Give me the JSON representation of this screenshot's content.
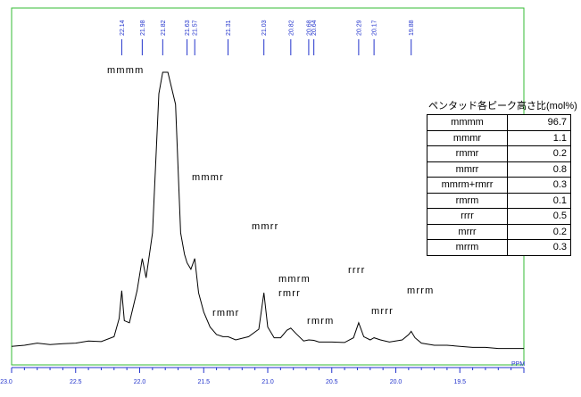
{
  "chart_data": {
    "type": "line",
    "xlabel": "PPM",
    "xlim": [
      23.0,
      19.0
    ],
    "x_ticks": [
      "23.0",
      "22.5",
      "22.0",
      "21.5",
      "21.0",
      "20.5",
      "20.0",
      "19.5"
    ],
    "peak_markers": [
      "22.14",
      "21.98",
      "21.82",
      "21.63",
      "21.57",
      "21.31",
      "21.03",
      "20.82",
      "20.68",
      "20.64",
      "20.29",
      "20.17",
      "19.88"
    ],
    "peak_labels": [
      {
        "text": "mmmm",
        "ppm": 21.82
      },
      {
        "text": "mmmr",
        "ppm": 21.57
      },
      {
        "text": "mmrr",
        "ppm": 21.03
      },
      {
        "text": "mmrm",
        "ppm": 20.82
      },
      {
        "text": "rmrr",
        "ppm": 20.82
      },
      {
        "text": "rmmr",
        "ppm": 21.31
      },
      {
        "text": "rmrm",
        "ppm": 20.64
      },
      {
        "text": "rrrr",
        "ppm": 20.29
      },
      {
        "text": "mrrr",
        "ppm": 20.17
      },
      {
        "text": "mrrm",
        "ppm": 19.88
      }
    ],
    "series": [
      {
        "x": [
          23.0,
          22.9,
          22.8,
          22.7,
          22.6,
          22.5,
          22.4,
          22.3,
          22.2,
          22.16,
          22.14,
          22.12,
          22.08,
          22.02,
          21.98,
          21.95,
          21.9,
          21.85,
          21.82,
          21.78,
          21.72,
          21.68,
          21.65,
          21.63,
          21.6,
          21.57,
          21.54,
          21.5,
          21.45,
          21.4,
          21.35,
          21.31,
          21.25,
          21.15,
          21.07,
          21.03,
          21.0,
          20.95,
          20.9,
          20.85,
          20.82,
          20.78,
          20.72,
          20.68,
          20.64,
          20.6,
          20.5,
          20.4,
          20.33,
          20.29,
          20.25,
          20.2,
          20.17,
          20.12,
          20.05,
          19.95,
          19.9,
          19.88,
          19.85,
          19.8,
          19.7,
          19.6,
          19.5,
          19.4,
          19.3,
          19.2,
          19.1,
          19.0
        ],
        "y": [
          2.0,
          2.5,
          3.5,
          2.8,
          3.2,
          3.5,
          4.5,
          4.2,
          6.5,
          15.0,
          28.0,
          14.0,
          13.0,
          28.0,
          43.0,
          34.0,
          55.0,
          120.0,
          130.0,
          130.0,
          115.0,
          55.0,
          45.0,
          41.0,
          38.0,
          43.0,
          27.0,
          18.0,
          11.0,
          7.5,
          6.5,
          6.5,
          5.0,
          6.5,
          10.0,
          27.0,
          11.0,
          6.0,
          6.0,
          9.5,
          10.5,
          8.0,
          4.5,
          5.0,
          4.8,
          4.0,
          4.0,
          3.8,
          6.0,
          13.0,
          6.5,
          5.0,
          6.0,
          5.0,
          4.0,
          5.0,
          7.5,
          9.0,
          6.0,
          3.5,
          2.5,
          2.5,
          2.0,
          1.5,
          1.5,
          1.0,
          1.0,
          1.0
        ]
      }
    ],
    "grid": false
  },
  "table": {
    "title": "ペンタッド各ピーク高さ比(mol%)",
    "rows": [
      {
        "k": "mmmm",
        "v": "96.7"
      },
      {
        "k": "mmmr",
        "v": "1.1"
      },
      {
        "k": "rmmr",
        "v": "0.2"
      },
      {
        "k": "mmrr",
        "v": "0.8"
      },
      {
        "k": "mmrm+rmrr",
        "v": "0.3"
      },
      {
        "k": "rmrm",
        "v": "0.1"
      },
      {
        "k": "rrrr",
        "v": "0.5"
      },
      {
        "k": "mrrr",
        "v": "0.2"
      },
      {
        "k": "mrrm",
        "v": "0.3"
      }
    ]
  },
  "colors": {
    "frame": "#33bb33",
    "axis": "#2233cc",
    "trace": "#000000"
  }
}
